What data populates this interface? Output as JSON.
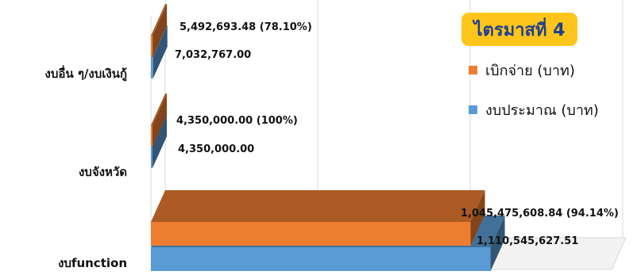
{
  "chart_data": {
    "type": "bar",
    "orientation": "horizontal",
    "three_d": true,
    "title": "",
    "categories": [
      "งบอื่น ๆ/งบเงินกู้",
      "งบจังหวัด",
      "งบfunction"
    ],
    "series": [
      {
        "name": "เบิกจ่าย (บาท)",
        "color": "#ed7d31",
        "values": [
          5492693.48,
          4350000.0,
          1045475608.84
        ],
        "labels": [
          "5,492,693.48 (78.10%)",
          "4,350,000.00 (100%)",
          "1,045,475,608.84 (94.14%)"
        ]
      },
      {
        "name": "งบประมาณ (บาท)",
        "color": "#5b9bd5",
        "values": [
          7032767.0,
          4350000.0,
          1110545627.51
        ],
        "labels": [
          "7,032,767.00",
          "4,350,000.00",
          "1,110,545,627.51"
        ]
      }
    ],
    "xlim": [
      0,
      1200000000
    ],
    "grid": true,
    "legend_position": "right"
  },
  "badge": {
    "text": "ไตรมาสที่ 4",
    "bg_color": "#ffc51a",
    "text_color": "#1f3f8f"
  },
  "legend": [
    {
      "label": "เบิกจ่าย (บาท)",
      "color": "#ed7d31"
    },
    {
      "label": "งบประมาณ (บาท)",
      "color": "#5b9bd5"
    }
  ]
}
